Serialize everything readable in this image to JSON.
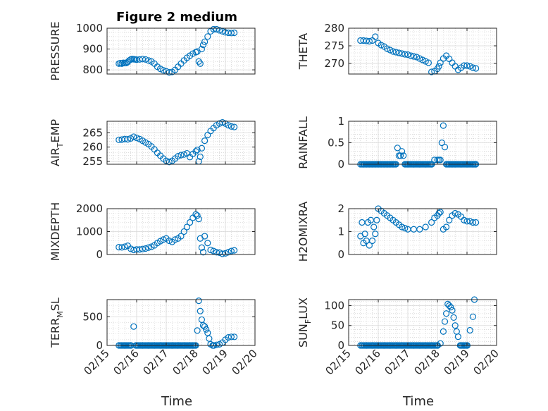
{
  "figure": {
    "title": "Figure 2 medium",
    "xlabel": "Time",
    "marker_color": "#0072BD",
    "x_ticks": [
      "02/15",
      "02/16",
      "02/17",
      "02/18",
      "02/19",
      "02/20"
    ]
  },
  "chart_data": [
    {
      "type": "scatter",
      "panel": "pressure",
      "ylabel": "PRESSURE",
      "ylim": [
        780,
        1000
      ],
      "yticks": [
        800,
        900,
        1000
      ],
      "xlim": [
        "02/15",
        "02/20"
      ],
      "grid": true,
      "x": [
        15.4,
        15.45,
        15.5,
        15.55,
        15.6,
        15.65,
        15.7,
        15.75,
        15.8,
        15.85,
        15.9,
        15.95,
        16.0,
        16.1,
        16.2,
        16.3,
        16.4,
        16.5,
        16.6,
        16.7,
        16.8,
        16.9,
        17.0,
        17.1,
        17.2,
        17.3,
        17.4,
        17.5,
        17.6,
        17.7,
        17.8,
        17.9,
        18.0,
        18.05,
        18.1,
        18.15,
        18.2,
        18.25,
        18.3,
        18.4,
        18.5,
        18.6,
        18.7,
        18.8,
        18.9,
        19.0,
        19.1,
        19.2,
        19.3
      ],
      "y": [
        830,
        832,
        830,
        834,
        833,
        833,
        838,
        845,
        850,
        852,
        851,
        850,
        849,
        850,
        852,
        850,
        845,
        840,
        830,
        815,
        805,
        798,
        793,
        788,
        790,
        800,
        815,
        830,
        845,
        858,
        868,
        878,
        885,
        888,
        840,
        830,
        900,
        920,
        935,
        960,
        985,
        995,
        995,
        990,
        985,
        980,
        978,
        977,
        978
      ]
    },
    {
      "type": "scatter",
      "panel": "theta",
      "ylabel": "THETA",
      "ylim": [
        267,
        280
      ],
      "yticks": [
        270,
        275,
        280
      ],
      "xlim": [
        "02/15",
        "02/20"
      ],
      "grid": true,
      "x": [
        15.4,
        15.5,
        15.6,
        15.7,
        15.8,
        15.9,
        16.0,
        16.1,
        16.2,
        16.3,
        16.4,
        16.5,
        16.6,
        16.7,
        16.8,
        16.9,
        17.0,
        17.1,
        17.2,
        17.3,
        17.4,
        17.5,
        17.6,
        17.7,
        17.8,
        17.9,
        18.0,
        18.05,
        18.1,
        18.2,
        18.3,
        18.4,
        18.5,
        18.6,
        18.7,
        18.8,
        18.9,
        19.0,
        19.1,
        19.2,
        19.3
      ],
      "y": [
        276.5,
        276.5,
        276.4,
        276.3,
        276.5,
        277.6,
        275.8,
        275.2,
        274.8,
        274.2,
        273.8,
        273.4,
        273.2,
        273.0,
        272.8,
        272.6,
        272.5,
        272.2,
        272.0,
        271.8,
        271.4,
        271.0,
        270.6,
        270.2,
        267.6,
        267.8,
        268.5,
        269.2,
        270.2,
        271.4,
        272.2,
        271.3,
        270.2,
        269.2,
        268.2,
        268.8,
        269.4,
        269.4,
        269.2,
        268.8,
        268.6
      ]
    },
    {
      "type": "scatter",
      "panel": "air_temp",
      "ylabel": "AIR",
      "ylabel_sub": "T",
      "ylabel_rest": "EMP",
      "ylim": [
        254,
        269
      ],
      "yticks": [
        255,
        260,
        265
      ],
      "xlim": [
        "02/15",
        "02/20"
      ],
      "grid": true,
      "x": [
        15.4,
        15.5,
        15.6,
        15.7,
        15.8,
        15.9,
        16.0,
        16.1,
        16.2,
        16.3,
        16.4,
        16.5,
        16.6,
        16.7,
        16.8,
        16.9,
        17.0,
        17.1,
        17.2,
        17.3,
        17.4,
        17.5,
        17.6,
        17.7,
        17.8,
        17.9,
        18.0,
        18.05,
        18.1,
        18.15,
        18.2,
        18.3,
        18.4,
        18.5,
        18.6,
        18.7,
        18.8,
        18.9,
        19.0,
        19.1,
        19.2,
        19.3
      ],
      "y": [
        262.5,
        262.6,
        262.8,
        262.7,
        263.0,
        263.6,
        263.2,
        262.8,
        262.2,
        261.6,
        261.0,
        260.2,
        259.2,
        258.0,
        257.0,
        256.0,
        255.2,
        254.8,
        255.2,
        256.0,
        256.8,
        257.2,
        257.4,
        257.8,
        256.5,
        257.6,
        258.5,
        259.0,
        255.0,
        256.6,
        259.6,
        262.2,
        264.2,
        265.6,
        266.6,
        267.6,
        268.2,
        268.6,
        268.2,
        267.6,
        267.2,
        267.0
      ]
    },
    {
      "type": "scatter",
      "panel": "rainfall",
      "ylabel": "RAINFALL",
      "ylim": [
        0,
        1
      ],
      "yticks": [
        0,
        0.5,
        1
      ],
      "xlim": [
        "02/15",
        "02/20"
      ],
      "grid": true,
      "x": [
        15.4,
        15.5,
        15.6,
        15.7,
        15.8,
        15.9,
        16.0,
        16.1,
        16.2,
        16.3,
        16.4,
        16.5,
        16.6,
        16.65,
        16.7,
        16.75,
        16.8,
        16.85,
        16.9,
        17.0,
        17.2,
        17.4,
        17.6,
        17.8,
        17.9,
        18.0,
        18.05,
        18.1,
        18.15,
        18.2,
        18.25,
        18.3,
        18.4,
        18.5,
        18.6,
        18.8,
        19.0,
        19.2,
        19.3
      ],
      "y": [
        0,
        0,
        0,
        0,
        0,
        0,
        0,
        0,
        0,
        0,
        0,
        0,
        0,
        0.38,
        0.2,
        0.2,
        0.3,
        0.2,
        0,
        0,
        0,
        0,
        0,
        0,
        0.1,
        0.1,
        0.1,
        0.1,
        0.5,
        0.9,
        0.4,
        0,
        0,
        0,
        0,
        0,
        0,
        0,
        0
      ]
    },
    {
      "type": "scatter",
      "panel": "mixdepth",
      "ylabel": "MIXDEPTH",
      "ylim": [
        0,
        2000
      ],
      "yticks": [
        0,
        1000,
        2000
      ],
      "xlim": [
        "02/15",
        "02/20"
      ],
      "grid": true,
      "x": [
        15.4,
        15.5,
        15.6,
        15.7,
        15.8,
        15.9,
        16.0,
        16.1,
        16.2,
        16.3,
        16.4,
        16.5,
        16.6,
        16.7,
        16.8,
        16.9,
        17.0,
        17.1,
        17.2,
        17.3,
        17.4,
        17.5,
        17.6,
        17.7,
        17.8,
        17.9,
        18.0,
        18.05,
        18.1,
        18.15,
        18.2,
        18.25,
        18.3,
        18.4,
        18.5,
        18.6,
        18.7,
        18.8,
        18.9,
        19.0,
        19.1,
        19.2,
        19.3
      ],
      "y": [
        320,
        310,
        340,
        380,
        250,
        200,
        220,
        220,
        240,
        260,
        300,
        340,
        400,
        500,
        580,
        650,
        700,
        600,
        550,
        650,
        700,
        800,
        1000,
        1200,
        1400,
        1600,
        1750,
        1700,
        1550,
        700,
        300,
        100,
        800,
        500,
        200,
        150,
        100,
        80,
        30,
        50,
        100,
        150,
        180
      ]
    },
    {
      "type": "scatter",
      "panel": "h2omixra",
      "ylabel": "H2OMIXRA",
      "ylim": [
        0,
        2
      ],
      "yticks": [
        0,
        1,
        2
      ],
      "xlim": [
        "02/15",
        "02/20"
      ],
      "grid": true,
      "x": [
        15.4,
        15.45,
        15.5,
        15.55,
        15.6,
        15.65,
        15.7,
        15.75,
        15.8,
        15.85,
        15.9,
        15.95,
        16.0,
        16.1,
        16.2,
        16.3,
        16.4,
        16.5,
        16.6,
        16.7,
        16.8,
        16.9,
        17.0,
        17.2,
        17.4,
        17.6,
        17.8,
        17.9,
        18.0,
        18.05,
        18.1,
        18.2,
        18.3,
        18.4,
        18.5,
        18.6,
        18.7,
        18.8,
        18.9,
        19.0,
        19.1,
        19.2,
        19.3
      ],
      "y": [
        0.8,
        1.4,
        0.5,
        0.9,
        0.6,
        1.4,
        0.4,
        1.5,
        0.6,
        1.2,
        0.9,
        1.5,
        2.0,
        1.9,
        1.8,
        1.7,
        1.6,
        1.5,
        1.4,
        1.3,
        1.2,
        1.15,
        1.1,
        1.1,
        1.1,
        1.2,
        1.4,
        1.6,
        1.7,
        1.8,
        1.85,
        1.1,
        1.2,
        1.5,
        1.7,
        1.8,
        1.75,
        1.65,
        1.5,
        1.45,
        1.45,
        1.4,
        1.4
      ]
    },
    {
      "type": "scatter",
      "panel": "terr_msl",
      "ylabel": "TERR",
      "ylabel_sub": "M",
      "ylabel_rest": "SL",
      "ylim": [
        0,
        800
      ],
      "yticks": [
        0,
        500
      ],
      "xlim": [
        "02/15",
        "02/20"
      ],
      "grid": true,
      "x": [
        15.4,
        15.6,
        15.8,
        15.9,
        16.0,
        16.2,
        16.4,
        16.6,
        16.8,
        17.0,
        17.2,
        17.4,
        17.6,
        17.8,
        17.9,
        18.0,
        18.05,
        18.1,
        18.15,
        18.2,
        18.25,
        18.3,
        18.35,
        18.4,
        18.45,
        18.5,
        18.6,
        18.7,
        18.8,
        18.9,
        19.0,
        19.1,
        19.2,
        19.3
      ],
      "y": [
        0,
        0,
        0,
        330,
        0,
        0,
        0,
        0,
        0,
        0,
        0,
        0,
        0,
        0,
        0,
        0,
        260,
        780,
        600,
        450,
        350,
        330,
        280,
        220,
        120,
        20,
        0,
        10,
        20,
        50,
        100,
        140,
        150,
        150
      ]
    },
    {
      "type": "scatter",
      "panel": "sun_flux",
      "ylabel": "SUN",
      "ylabel_sub": "F",
      "ylabel_rest": "LUX",
      "ylim": [
        0,
        115
      ],
      "yticks": [
        0,
        50,
        100
      ],
      "xlim": [
        "02/15",
        "02/20"
      ],
      "grid": true,
      "x": [
        15.4,
        15.6,
        15.8,
        16.0,
        16.2,
        16.4,
        16.6,
        16.8,
        17.0,
        17.2,
        17.4,
        17.6,
        17.8,
        18.0,
        18.1,
        18.2,
        18.25,
        18.3,
        18.35,
        18.4,
        18.45,
        18.5,
        18.55,
        18.6,
        18.65,
        18.7,
        18.8,
        18.9,
        19.0,
        19.1,
        19.2,
        19.25
      ],
      "y": [
        0,
        0,
        0,
        0,
        0,
        0,
        0,
        0,
        0,
        0,
        0,
        0,
        0,
        0,
        5,
        35,
        60,
        80,
        104,
        100,
        96,
        88,
        70,
        50,
        35,
        22,
        0,
        0,
        0,
        38,
        72,
        115
      ]
    }
  ]
}
